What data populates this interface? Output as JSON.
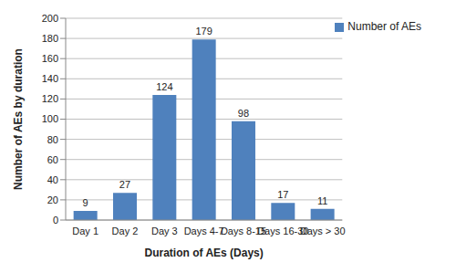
{
  "chart_data": {
    "type": "bar",
    "x_label": "Duration of AEs (Days)",
    "y_label": "Number of AEs by duration",
    "categories": [
      "Day 1",
      "Day 2",
      "Day 3",
      "Days 4-7",
      "Days 8-15",
      "Days 16-30",
      "Days > 30"
    ],
    "series": [
      {
        "name": "Number of AEs",
        "color": "#4f81bd",
        "values": [
          9,
          27,
          124,
          179,
          98,
          17,
          11
        ]
      }
    ],
    "ylim": [
      0,
      200
    ],
    "yticks": [
      0,
      20,
      40,
      60,
      80,
      100,
      120,
      140,
      160,
      180,
      200
    ],
    "grid": true,
    "legend": "upper right",
    "data_labels": true
  }
}
